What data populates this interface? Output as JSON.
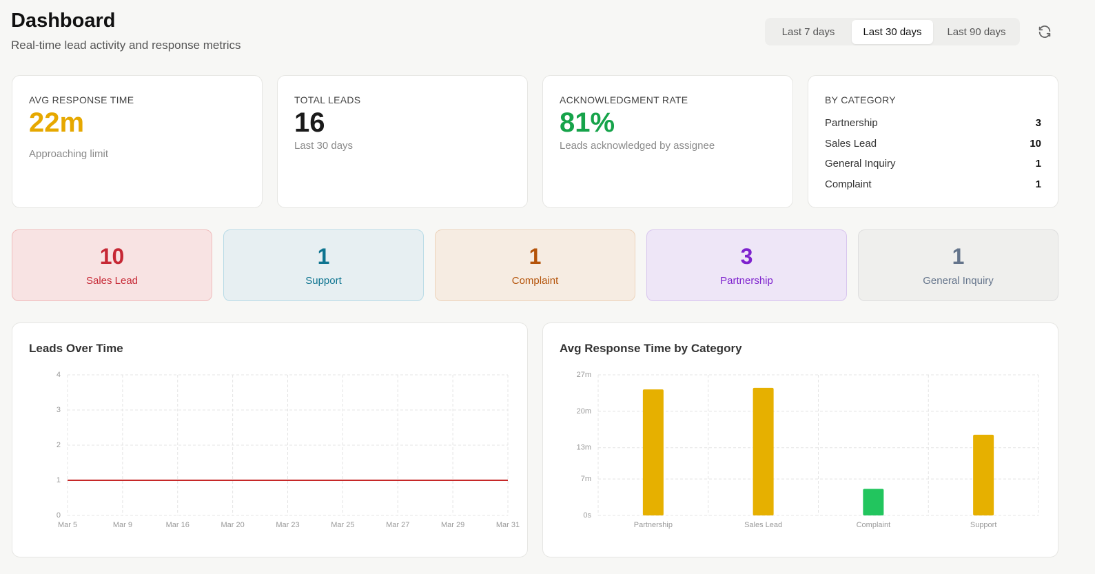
{
  "header": {
    "title": "Dashboard",
    "subtitle": "Real-time lead activity and response metrics",
    "ranges": [
      {
        "label": "Last 7 days",
        "active": false
      },
      {
        "label": "Last 30 days",
        "active": true
      },
      {
        "label": "Last 90 days",
        "active": false
      }
    ]
  },
  "stats": [
    {
      "label": "AVG RESPONSE TIME",
      "value": "22m",
      "note": "Approaching limit",
      "color": "#e6a800"
    },
    {
      "label": "TOTAL LEADS",
      "value": "16",
      "note": "Last 30 days",
      "color": "#1a1a1a"
    },
    {
      "label": "ACKNOWLEDGMENT RATE",
      "value": "81%",
      "note": "Leads acknowledged by assignee",
      "color": "#16a34a"
    }
  ],
  "by_category": {
    "label": "BY CATEGORY",
    "rows": [
      {
        "name": "Partnership",
        "count": 3
      },
      {
        "name": "Sales Lead",
        "count": 10
      },
      {
        "name": "General Inquiry",
        "count": 1
      },
      {
        "name": "Complaint",
        "count": 1
      }
    ]
  },
  "tiles": [
    {
      "count": 10,
      "label": "Sales Lead",
      "color": "#c62835",
      "background": "#f8e3e3",
      "border": "#efbcbc"
    },
    {
      "count": 1,
      "label": "Support",
      "color": "#0e7490",
      "background": "#e7eff2",
      "border": "#b9dbe6"
    },
    {
      "count": 1,
      "label": "Complaint",
      "color": "#b45309",
      "background": "#f6ece2",
      "border": "#ecd3bb"
    },
    {
      "count": 3,
      "label": "Partnership",
      "color": "#7e22ce",
      "background": "#eee6f7",
      "border": "#d8c5ee"
    },
    {
      "count": 1,
      "label": "General Inquiry",
      "color": "#64748b",
      "background": "#efefed",
      "border": "#dedede"
    }
  ],
  "chart_data": [
    {
      "type": "line",
      "title": "Leads Over Time",
      "categories": [
        "Mar 5",
        "Mar 9",
        "Mar 16",
        "Mar 20",
        "Mar 23",
        "Mar 25",
        "Mar 27",
        "Mar 29",
        "Mar 31"
      ],
      "series": [
        {
          "color": "#c62828",
          "values": [
            1,
            1,
            1,
            1,
            1,
            1,
            1,
            1,
            1
          ]
        }
      ],
      "ylim": [
        0,
        4
      ],
      "yticks": [
        0,
        1,
        2,
        3,
        4
      ],
      "grid": true
    },
    {
      "type": "bar",
      "title": "Avg Response Time by Category",
      "categories": [
        "Partnership",
        "Sales Lead",
        "Complaint",
        "Support"
      ],
      "values": [
        24.2,
        24.5,
        5.1,
        15.5
      ],
      "colors": [
        "#e6b000",
        "#e6b000",
        "#22c55e",
        "#e6b000"
      ],
      "ylim": [
        0,
        27
      ],
      "yticks": [
        {
          "value": 0,
          "label": "0s"
        },
        {
          "value": 7,
          "label": "7m"
        },
        {
          "value": 13,
          "label": "13m"
        },
        {
          "value": 20,
          "label": "20m"
        },
        {
          "value": 27,
          "label": "27m"
        }
      ],
      "grid": true
    }
  ]
}
